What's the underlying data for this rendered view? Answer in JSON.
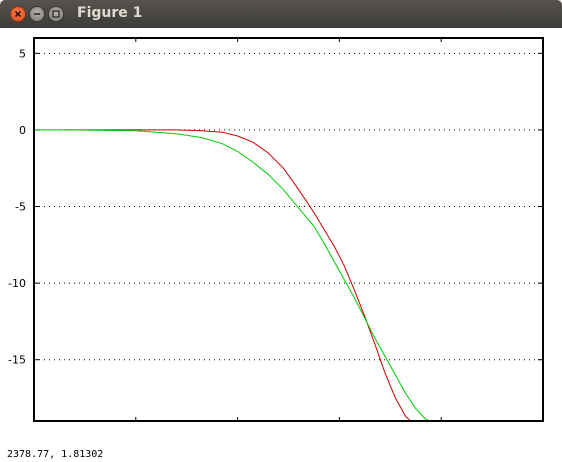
{
  "window": {
    "title": "Figure 1"
  },
  "status_bar": {
    "coords": "2378.77,  1.81302"
  },
  "chart_data": {
    "type": "line",
    "ylim": [
      -19,
      6
    ],
    "xlim": [
      0,
      1
    ],
    "yticks": [
      5,
      0,
      -5,
      -10,
      -15
    ],
    "ytick_labels": [
      "5",
      "0",
      "-5",
      "-10",
      "-15"
    ],
    "grid": "horizontal dotted",
    "series": [
      {
        "color": "#cc0000",
        "x": [
          0.06,
          0.2,
          0.28,
          0.33,
          0.37,
          0.4,
          0.43,
          0.46,
          0.49,
          0.52,
          0.55,
          0.57,
          0.59,
          0.61,
          0.63,
          0.65,
          0.67,
          0.69,
          0.71,
          0.73,
          0.74,
          0.75
        ],
        "y": [
          0.0,
          0.0,
          0.0,
          -0.05,
          -0.15,
          -0.4,
          -0.8,
          -1.5,
          -2.5,
          -3.9,
          -5.4,
          -6.5,
          -7.6,
          -8.9,
          -10.5,
          -12.2,
          -14.0,
          -15.9,
          -17.5,
          -18.7,
          -19.0,
          -19.0
        ]
      },
      {
        "color": "#00cc00",
        "x": [
          0.0,
          0.06,
          0.2,
          0.28,
          0.33,
          0.37,
          0.4,
          0.43,
          0.46,
          0.49,
          0.52,
          0.55,
          0.57,
          0.59,
          0.61,
          0.63,
          0.65,
          0.67,
          0.69,
          0.71,
          0.73,
          0.75,
          0.77,
          0.78
        ],
        "y": [
          0.0,
          0.0,
          -0.05,
          -0.25,
          -0.5,
          -0.9,
          -1.4,
          -2.1,
          -2.9,
          -3.9,
          -5.1,
          -6.3,
          -7.4,
          -8.6,
          -9.8,
          -11.0,
          -12.3,
          -13.6,
          -14.8,
          -16.0,
          -17.2,
          -18.2,
          -18.9,
          -19.0
        ]
      }
    ]
  }
}
